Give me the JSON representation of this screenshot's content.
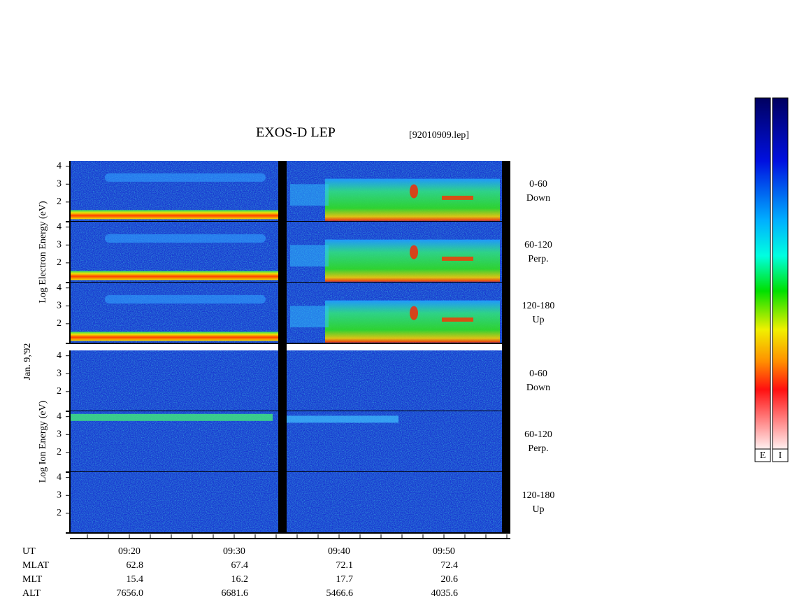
{
  "title": "EXOS-D LEP",
  "file": "[92010909.lep]",
  "date": "Jan. 9,'92",
  "ylim": [
    0.9,
    4.3
  ],
  "yticks": [
    2,
    3,
    4
  ],
  "species": [
    {
      "label": "Log Electron Energy (eV)",
      "panels": [
        {
          "range": "0-60",
          "direction": "Down"
        },
        {
          "range": "60-120",
          "direction": "Perp."
        },
        {
          "range": "120-180",
          "direction": "Up"
        }
      ]
    },
    {
      "label": "Log Ion Energy (eV)",
      "panels": [
        {
          "range": "0-60",
          "direction": "Down"
        },
        {
          "range": "60-120",
          "direction": "Perp."
        },
        {
          "range": "120-180",
          "direction": "Up"
        }
      ]
    }
  ],
  "orbit_table": {
    "rows": [
      {
        "label": "UT",
        "values": [
          "09:20",
          "09:30",
          "09:40",
          "09:50"
        ]
      },
      {
        "label": "MLAT",
        "values": [
          "62.8",
          "67.4",
          "72.1",
          "72.4"
        ]
      },
      {
        "label": "MLT",
        "values": [
          "15.4",
          "16.2",
          "17.7",
          "20.6"
        ]
      },
      {
        "label": "ALT",
        "values": [
          "7656.0",
          "6681.6",
          "5466.6",
          "4035.6"
        ]
      }
    ]
  },
  "colorbars": [
    "E",
    "I"
  ]
}
